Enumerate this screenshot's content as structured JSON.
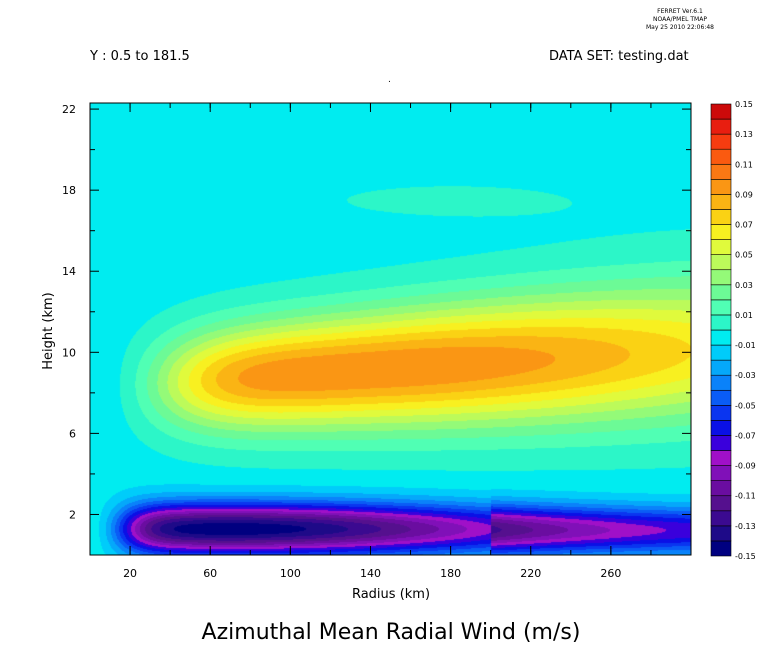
{
  "header": {
    "stamp_line1": "FERRET  Ver.6.1",
    "stamp_line2": "NOAA/PMEL TMAP",
    "stamp_line3": "May 25 2010 22:06:48",
    "y_range": "Y : 0.5 to 181.5",
    "dataset": "DATA SET: testing.dat",
    "center_dot": "."
  },
  "chart_data": {
    "type": "heatmap",
    "title": "Azimuthal Mean Radial Wind (m/s)",
    "xlabel": "Radius (km)",
    "ylabel": "Height (km)",
    "xlim": [
      0,
      300
    ],
    "ylim": [
      0,
      22.3
    ],
    "x_ticks": [
      "20",
      "60",
      "100",
      "140",
      "180",
      "220",
      "260"
    ],
    "x_tick_values": [
      20,
      60,
      100,
      140,
      180,
      220,
      260
    ],
    "y_ticks": [
      "2",
      "6",
      "10",
      "14",
      "18",
      "22"
    ],
    "y_tick_values": [
      2,
      6,
      10,
      14,
      18,
      22
    ],
    "colorbar": {
      "min": -0.15,
      "max": 0.15,
      "step": 0.01,
      "labels": [
        "0.15",
        "0.13",
        "0.11",
        "0.09",
        "0.07",
        "0.05",
        "0.03",
        "0.01",
        "-0.01",
        "-0.03",
        "-0.05",
        "-0.07",
        "-0.09",
        "-0.11",
        "-0.13",
        "-0.15"
      ]
    },
    "features": {
      "outflow_max": {
        "value": 0.105,
        "x": 140,
        "y": 9.2
      },
      "inflow_min": {
        "value": -0.125,
        "x": 70,
        "y": 1.3
      },
      "background": -0.005
    }
  }
}
